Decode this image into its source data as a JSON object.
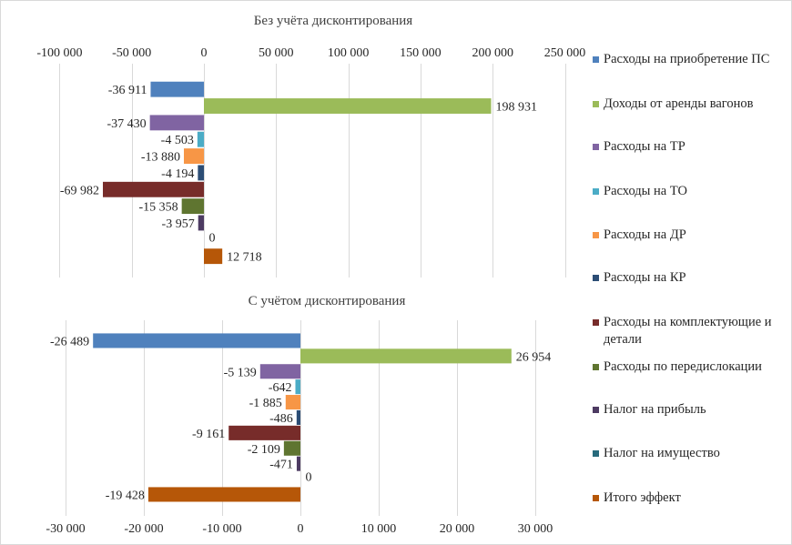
{
  "chart_data": [
    {
      "type": "bar",
      "orientation": "horizontal",
      "title": "Без учёта дисконтирования",
      "xlabel": "",
      "ylabel": "",
      "xlim": [
        -100000,
        250000
      ],
      "xticks": [
        -100000,
        -50000,
        0,
        50000,
        100000,
        150000,
        200000,
        250000
      ],
      "xtick_labels": [
        "-100 000",
        "-50 000",
        "0",
        "50 000",
        "100 000",
        "150 000",
        "200 000",
        "250 000"
      ],
      "axis_position": "top",
      "grid": true,
      "categories": [
        "Расходы на приобретение ПС",
        "Доходы от аренды вагонов",
        "Расходы на ТР",
        "Расходы на ТО",
        "Расходы на ДР",
        "Расходы на КР",
        "Расходы на комплектующие и детали",
        "Расходы по передислокации",
        "Налог на прибыль",
        "Налог на имущество",
        "Итого эффект"
      ],
      "values": [
        -36911,
        198931,
        -37430,
        -4503,
        -13880,
        -4194,
        -69982,
        -15358,
        -3957,
        0,
        12718
      ],
      "value_labels": [
        "-36 911",
        "198 931",
        "-37 430",
        "-4 503",
        "-13 880",
        "-4 194",
        "-69 982",
        "-15 358",
        "-3 957",
        "0",
        "12 718"
      ]
    },
    {
      "type": "bar",
      "orientation": "horizontal",
      "title": "С учётом дисконтирования",
      "xlabel": "",
      "ylabel": "",
      "xlim": [
        -30000,
        30000
      ],
      "xticks": [
        -30000,
        -20000,
        -10000,
        0,
        10000,
        20000,
        30000
      ],
      "xtick_labels": [
        "-30 000",
        "-20 000",
        "-10 000",
        "0",
        "10 000",
        "20 000",
        "30 000"
      ],
      "axis_position": "bottom",
      "grid": true,
      "categories": [
        "Расходы на приобретение ПС",
        "Доходы от аренды вагонов",
        "Расходы на ТР",
        "Расходы на ТО",
        "Расходы на ДР",
        "Расходы на КР",
        "Расходы на комплектующие и детали",
        "Расходы по передислокации",
        "Налог на прибыль",
        "Налог на имущество",
        "Итого эффект"
      ],
      "values": [
        -26489,
        26954,
        -5139,
        -642,
        -1885,
        -486,
        -9161,
        -2109,
        -471,
        0,
        -19428
      ],
      "value_labels": [
        "-26 489",
        "26 954",
        "-5 139",
        "-642",
        "-1 885",
        "-486",
        "-9 161",
        "-2 109",
        "-471",
        "0",
        "-19 428"
      ]
    }
  ],
  "legend": {
    "placement": "right",
    "items": [
      {
        "label": "Расходы на приобретение ПС",
        "color": "#4f81bd"
      },
      {
        "label": "Доходы от аренды вагонов",
        "color": "#9bbb59"
      },
      {
        "label": "Расходы на ТР",
        "color": "#8064a2"
      },
      {
        "label": "Расходы на ТО",
        "color": "#4bacc6"
      },
      {
        "label": "Расходы на ДР",
        "color": "#f79646"
      },
      {
        "label": "Расходы на КР",
        "color": "#2c4d75"
      },
      {
        "label": "Расходы на комплектующие и детали",
        "color": "#772c2a"
      },
      {
        "label": "Расходы по передислокации",
        "color": "#5f7530"
      },
      {
        "label": "Налог на прибыль",
        "color": "#4d3b62"
      },
      {
        "label": "Налог на имущество",
        "color": "#276a7c"
      },
      {
        "label": "Итого эффект",
        "color": "#b65708"
      }
    ]
  }
}
